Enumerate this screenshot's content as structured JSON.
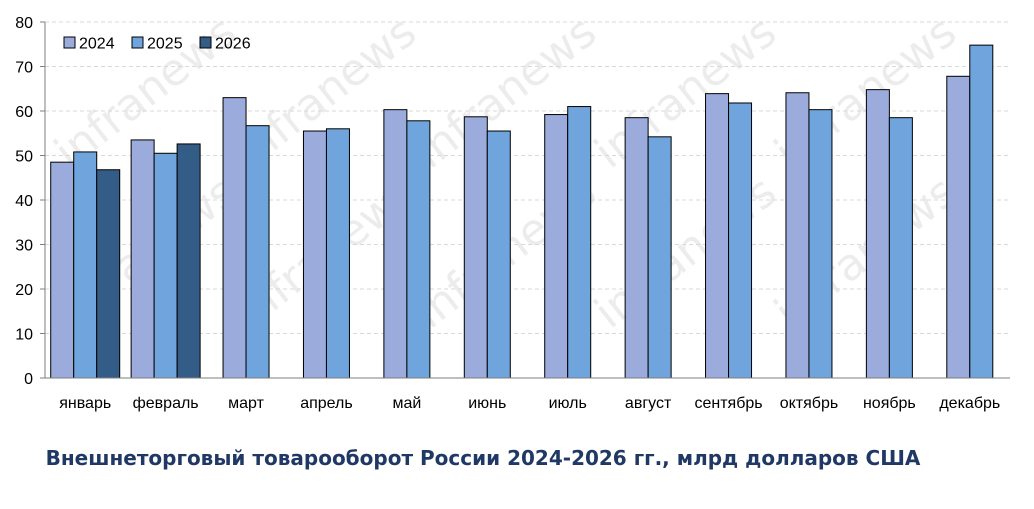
{
  "chart_data": {
    "type": "bar",
    "title": "",
    "caption": "Внешнеторговый товарооборот  России  2024-2026 гг., млрд долларов  США",
    "watermark": "infranews",
    "xlabel": "",
    "ylabel": "",
    "ylim": [
      0,
      80
    ],
    "yticks": [
      0,
      10,
      20,
      30,
      40,
      50,
      60,
      70,
      80
    ],
    "grid": true,
    "legend_position": "top-left",
    "categories": [
      "январь",
      "февраль",
      "март",
      "апрель",
      "май",
      "июнь",
      "июль",
      "август",
      "сентябрь",
      "октябрь",
      "ноябрь",
      "декабрь"
    ],
    "series": [
      {
        "name": "2024",
        "color": "#9aabdc",
        "values": [
          48.5,
          53.5,
          63.0,
          55.5,
          60.3,
          58.7,
          59.2,
          58.5,
          63.9,
          64.1,
          64.8,
          67.8
        ]
      },
      {
        "name": "2025",
        "color": "#6fa5dc",
        "values": [
          50.8,
          50.5,
          56.7,
          56.0,
          57.8,
          55.5,
          61.0,
          54.2,
          61.8,
          60.3,
          58.5,
          74.8
        ]
      },
      {
        "name": "2026",
        "color": "#335d87",
        "values": [
          46.8,
          52.6,
          null,
          null,
          null,
          null,
          null,
          null,
          null,
          null,
          null,
          null
        ]
      }
    ]
  }
}
